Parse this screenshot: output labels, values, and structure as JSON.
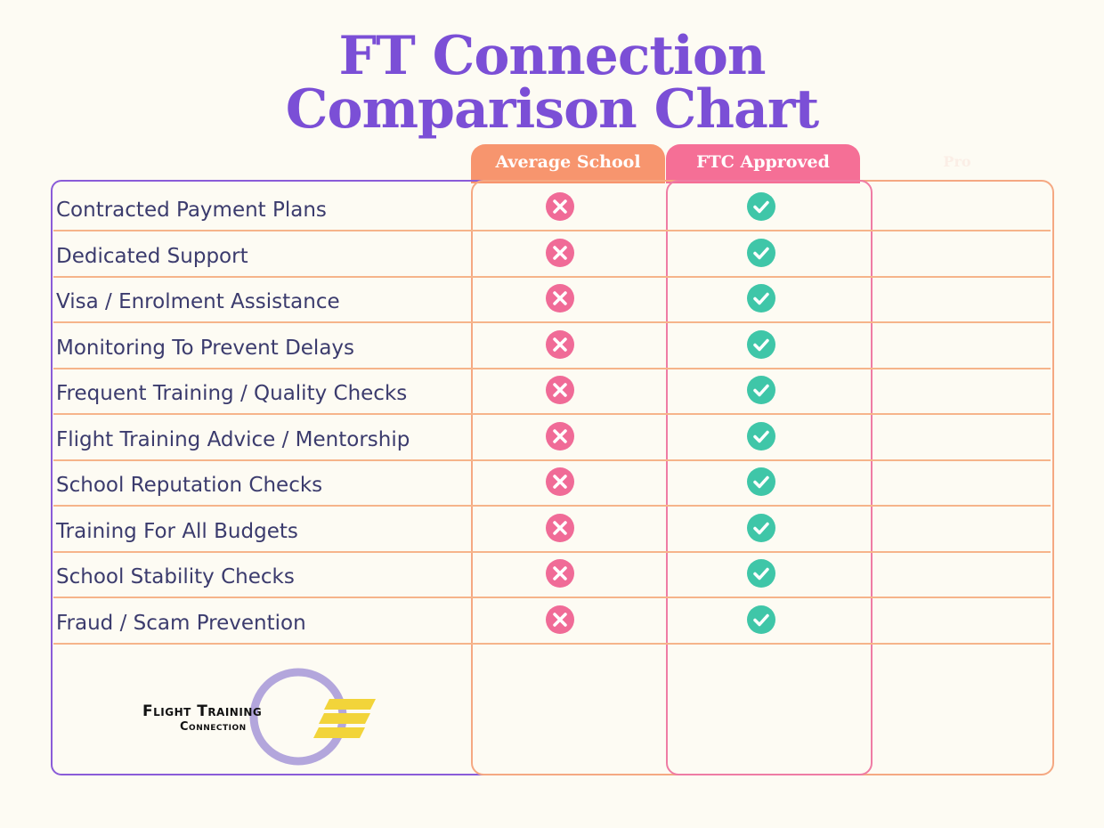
{
  "title": {
    "line1": "FT Connection",
    "line2": "Comparison Chart"
  },
  "columns": {
    "average": "Average School",
    "ftc": "FTC Approved",
    "third": "Pro"
  },
  "rows": [
    {
      "label": "Contracted Payment Plans",
      "average": "x",
      "ftc": "check"
    },
    {
      "label": "Dedicated Support",
      "average": "x",
      "ftc": "check"
    },
    {
      "label": "Visa / Enrolment Assistance",
      "average": "x",
      "ftc": "check"
    },
    {
      "label": "Monitoring To Prevent Delays",
      "average": "x",
      "ftc": "check"
    },
    {
      "label": "Frequent Training / Quality Checks",
      "average": "x",
      "ftc": "check"
    },
    {
      "label": "Flight Training Advice / Mentorship",
      "average": "x",
      "ftc": "check"
    },
    {
      "label": "School Reputation Checks",
      "average": "x",
      "ftc": "check"
    },
    {
      "label": "Training For All Budgets",
      "average": "x",
      "ftc": "check"
    },
    {
      "label": "School Stability Checks",
      "average": "x",
      "ftc": "check"
    },
    {
      "label": "Fraud / Scam Prevention",
      "average": "x",
      "ftc": "check"
    }
  ],
  "logo": {
    "line1": "Flight Training",
    "line2": "Connection"
  },
  "colors": {
    "title": "#7b4fd6",
    "average_tab": "#f7956e",
    "ftc_tab": "#f56f96",
    "x_icon": "#f06b97",
    "check_icon": "#3fc6a8",
    "row_line": "#f6b48a"
  },
  "icons": {
    "no": "close-circle-icon",
    "yes": "check-circle-icon"
  }
}
